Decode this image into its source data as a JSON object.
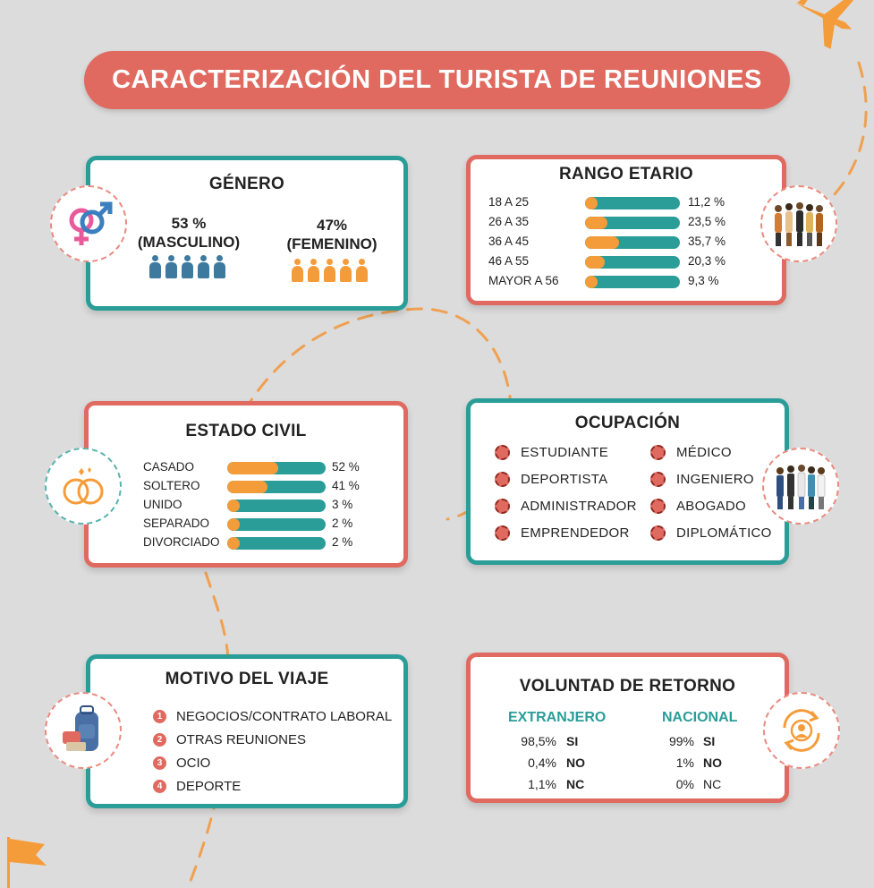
{
  "title": "CARACTERIZACIÓN DEL TURISTA DE REUNIONES",
  "colors": {
    "teal": "#2a9d98",
    "coral": "#e06a60",
    "orange": "#f59c3a",
    "blue_person": "#3e7a9e"
  },
  "genero": {
    "title": "GÉNERO",
    "icon": "gender-symbols-icon",
    "masculino": {
      "pct": "53 %",
      "label": "(MASCULINO)"
    },
    "femenino": {
      "pct": "47%",
      "label": "(FEMENINO)"
    }
  },
  "rango": {
    "title": "RANGO ETARIO",
    "icon": "people-group-icon",
    "rows": [
      {
        "label": "18 A 25",
        "value": "11,2 %",
        "fraction": 0.112
      },
      {
        "label": "26 A 35",
        "value": "23,5 %",
        "fraction": 0.235
      },
      {
        "label": "36 A 45",
        "value": "35,7 %",
        "fraction": 0.357
      },
      {
        "label": "46 A 55",
        "value": "20,3 %",
        "fraction": 0.203
      },
      {
        "label": "MAYOR A 56",
        "value": "9,3 %",
        "fraction": 0.093
      }
    ]
  },
  "estado": {
    "title": "ESTADO CIVIL",
    "icon": "wedding-rings-icon",
    "rows": [
      {
        "label": "CASADO",
        "value": "52 %",
        "fraction": 0.52
      },
      {
        "label": "SOLTERO",
        "value": "41 %",
        "fraction": 0.41
      },
      {
        "label": "UNIDO",
        "value": "3 %",
        "fraction": 0.03
      },
      {
        "label": "SEPARADO",
        "value": "2 %",
        "fraction": 0.02
      },
      {
        "label": "DIVORCIADO",
        "value": "2 %",
        "fraction": 0.02
      }
    ]
  },
  "ocupacion": {
    "title": "OCUPACIÓN",
    "icon": "professionals-icon",
    "left": [
      "ESTUDIANTE",
      "DEPORTISTA",
      "ADMINISTRADOR",
      "EMPRENDEDOR"
    ],
    "right": [
      "MÉDICO",
      "INGENIERO",
      "ABOGADO",
      "DIPLOMÁTICO"
    ]
  },
  "motivo": {
    "title": "MOTIVO DEL VIAJE",
    "icon": "luggage-icon",
    "items": [
      {
        "num": "1",
        "label": "NEGOCIOS/CONTRATO LABORAL"
      },
      {
        "num": "2",
        "label": "OTRAS REUNIONES"
      },
      {
        "num": "3",
        "label": "OCIO"
      },
      {
        "num": "4",
        "label": "DEPORTE"
      }
    ]
  },
  "voluntad": {
    "title": "VOLUNTAD DE RETORNO",
    "icon": "return-person-icon",
    "extranjero": {
      "label": "EXTRANJERO",
      "rows": [
        {
          "pct": "98,5%",
          "ans": "SI"
        },
        {
          "pct": "0,4%",
          "ans": "NO"
        },
        {
          "pct": "1,1%",
          "ans": "NC"
        }
      ]
    },
    "nacional": {
      "label": "NACIONAL",
      "rows": [
        {
          "pct": "99%",
          "ans": "SI"
        },
        {
          "pct": "1%",
          "ans": "NO"
        },
        {
          "pct": "0%",
          "ans": "NC"
        }
      ]
    }
  }
}
